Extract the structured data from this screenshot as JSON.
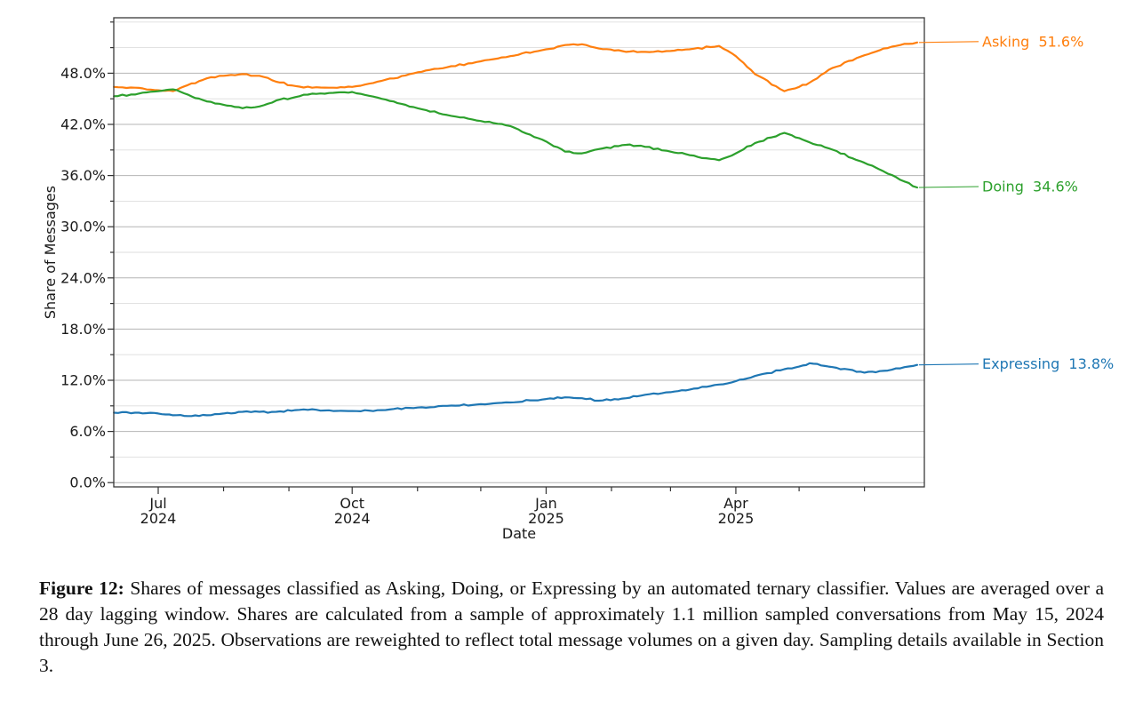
{
  "chart_data": {
    "type": "line",
    "xlabel": "Date",
    "ylabel": "Share of Messages",
    "ylim": [
      -0.5,
      54.5
    ],
    "grid": true,
    "legend_position": "right-end-annotations",
    "y_tick_labels": [
      "0.0%",
      "6.0%",
      "12.0%",
      "18.0%",
      "24.0%",
      "30.0%",
      "36.0%",
      "42.0%",
      "48.0%"
    ],
    "x_major_ticks": [
      {
        "month": "Jul",
        "year": "2024"
      },
      {
        "month": "Oct",
        "year": "2024"
      },
      {
        "month": "Jan",
        "year": "2025"
      },
      {
        "month": "Apr",
        "year": "2025"
      }
    ],
    "x": [
      "2024-06-10",
      "2024-06-20",
      "2024-07-01",
      "2024-07-08",
      "2024-07-15",
      "2024-07-24",
      "2024-08-01",
      "2024-08-10",
      "2024-08-18",
      "2024-08-26",
      "2024-09-04",
      "2024-09-12",
      "2024-09-22",
      "2024-10-01",
      "2024-10-15",
      "2024-11-01",
      "2024-11-15",
      "2024-12-01",
      "2024-12-15",
      "2025-01-01",
      "2025-01-10",
      "2025-01-18",
      "2025-01-26",
      "2025-02-08",
      "2025-02-15",
      "2025-03-01",
      "2025-03-10",
      "2025-03-24",
      "2025-04-01",
      "2025-04-10",
      "2025-04-24",
      "2025-05-01",
      "2025-05-06",
      "2025-05-15",
      "2025-06-01",
      "2025-06-10",
      "2025-06-18",
      "2025-06-26"
    ],
    "series": [
      {
        "name": "Asking",
        "color": "#ff7f0e",
        "final_label": "51.6%",
        "values": [
          46.4,
          46.3,
          46.0,
          45.9,
          46.6,
          47.4,
          47.7,
          47.9,
          47.7,
          47.0,
          46.5,
          46.3,
          46.3,
          46.4,
          47.1,
          48.1,
          48.7,
          49.4,
          50.0,
          50.8,
          51.3,
          51.4,
          50.9,
          50.5,
          50.5,
          50.6,
          50.8,
          51.2,
          50.0,
          47.9,
          45.9,
          46.4,
          46.9,
          48.4,
          50.1,
          50.9,
          51.3,
          51.6
        ]
      },
      {
        "name": "Doing",
        "color": "#2ca02c",
        "final_label": "34.6%",
        "values": [
          45.3,
          45.5,
          45.9,
          46.1,
          45.5,
          44.7,
          44.3,
          43.9,
          44.1,
          44.8,
          45.2,
          45.6,
          45.7,
          45.8,
          45.0,
          43.9,
          43.1,
          42.4,
          41.8,
          40.0,
          38.8,
          38.6,
          39.1,
          39.6,
          39.5,
          38.8,
          38.4,
          37.8,
          38.6,
          39.8,
          41.0,
          40.4,
          39.9,
          39.2,
          37.5,
          36.5,
          35.5,
          34.6
        ]
      },
      {
        "name": "Expressing",
        "color": "#1f77b4",
        "final_label": "13.8%",
        "values": [
          8.2,
          8.2,
          8.1,
          7.9,
          7.8,
          7.9,
          8.1,
          8.3,
          8.3,
          8.3,
          8.5,
          8.6,
          8.4,
          8.4,
          8.5,
          8.8,
          9.0,
          9.2,
          9.4,
          9.8,
          10.0,
          9.9,
          9.6,
          9.9,
          10.2,
          10.6,
          10.9,
          11.5,
          11.9,
          12.5,
          13.3,
          13.6,
          14.0,
          13.6,
          12.9,
          13.1,
          13.4,
          13.8
        ]
      }
    ]
  },
  "caption": {
    "label": "Figure 12:",
    "text": " Shares of messages classified as Asking, Doing, or Expressing by an automated ternary classifier. Values are averaged over a 28 day lagging window. Shares are calculated from a sample of approximately 1.1 million sampled conversations from May 15, 2024 through June 26, 2025. Observations are reweighted to reflect total message volumes on a given day. Sampling details available in Section 3."
  }
}
